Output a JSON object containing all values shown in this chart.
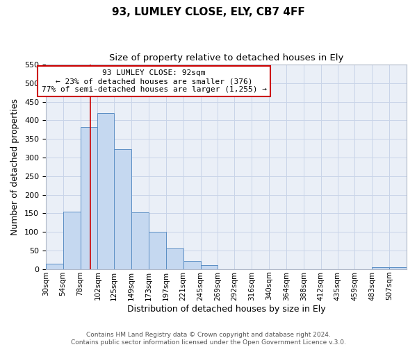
{
  "title": "93, LUMLEY CLOSE, ELY, CB7 4FF",
  "subtitle": "Size of property relative to detached houses in Ely",
  "xlabel": "Distribution of detached houses by size in Ely",
  "ylabel": "Number of detached properties",
  "bin_labels": [
    "30sqm",
    "54sqm",
    "78sqm",
    "102sqm",
    "125sqm",
    "149sqm",
    "173sqm",
    "197sqm",
    "221sqm",
    "245sqm",
    "269sqm",
    "292sqm",
    "316sqm",
    "340sqm",
    "364sqm",
    "388sqm",
    "412sqm",
    "435sqm",
    "459sqm",
    "483sqm",
    "507sqm"
  ],
  "bin_edges": [
    30,
    54,
    78,
    102,
    125,
    149,
    173,
    197,
    221,
    245,
    269,
    292,
    316,
    340,
    364,
    388,
    412,
    435,
    459,
    483,
    507,
    531
  ],
  "bar_heights": [
    15,
    155,
    383,
    420,
    322,
    153,
    101,
    55,
    22,
    10,
    0,
    0,
    0,
    0,
    0,
    0,
    0,
    0,
    0,
    5,
    5
  ],
  "bar_color": "#c5d8f0",
  "bar_edge_color": "#5b8ec4",
  "red_line_x": 92,
  "ylim": [
    0,
    550
  ],
  "yticks": [
    0,
    50,
    100,
    150,
    200,
    250,
    300,
    350,
    400,
    450,
    500,
    550
  ],
  "annotation_title": "93 LUMLEY CLOSE: 92sqm",
  "annotation_line1": "← 23% of detached houses are smaller (376)",
  "annotation_line2": "77% of semi-detached houses are larger (1,255) →",
  "annotation_box_facecolor": "#ffffff",
  "annotation_box_edgecolor": "#cc0000",
  "footer1": "Contains HM Land Registry data © Crown copyright and database right 2024.",
  "footer2": "Contains public sector information licensed under the Open Government Licence v.3.0.",
  "grid_color": "#c8d4e8",
  "background_color": "#eaeff7"
}
